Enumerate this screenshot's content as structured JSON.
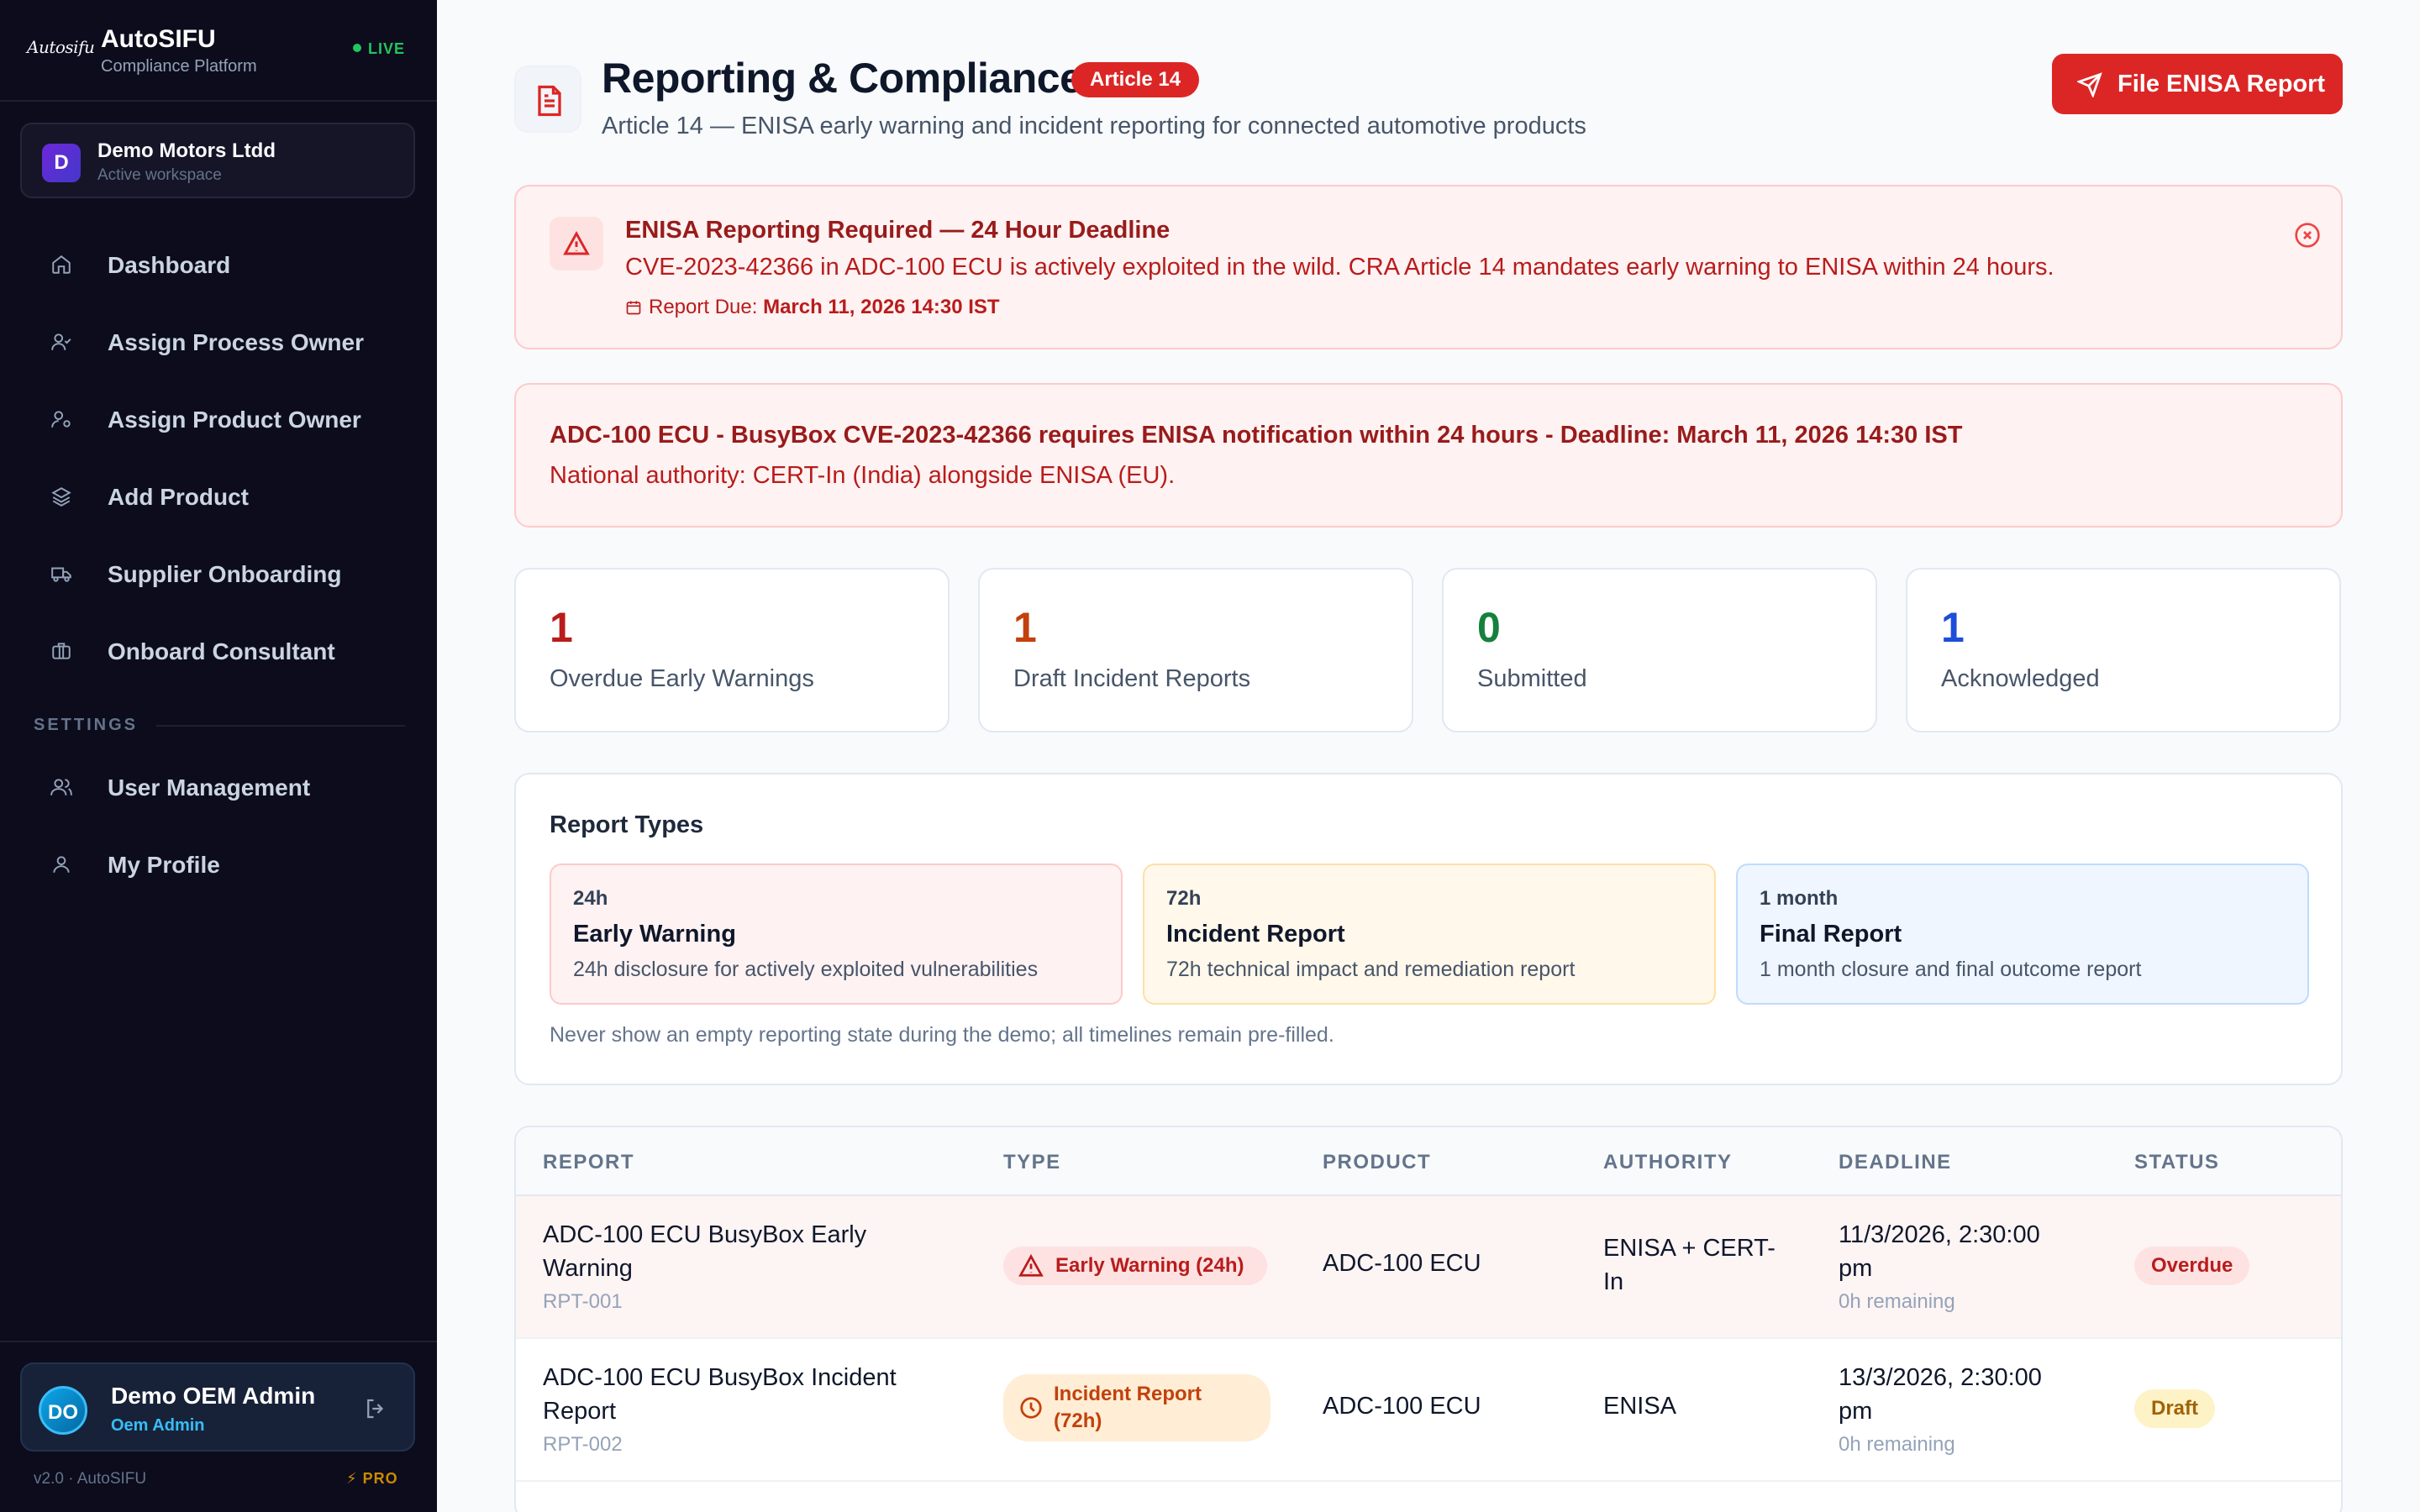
{
  "sidebar": {
    "brand": {
      "logo": "Autosifu",
      "name": "AutoSIFU",
      "subtitle": "Compliance Platform",
      "live": "LIVE"
    },
    "workspace": {
      "initial": "D",
      "name": "Demo Motors Ltdd",
      "subtitle": "Active workspace"
    },
    "nav": [
      {
        "label": "Dashboard",
        "icon": "home-icon"
      },
      {
        "label": "Assign Process Owner",
        "icon": "user-check-icon"
      },
      {
        "label": "Assign Product Owner",
        "icon": "user-cog-icon"
      },
      {
        "label": "Add Product",
        "icon": "layers-icon"
      },
      {
        "label": "Supplier Onboarding",
        "icon": "truck-icon"
      },
      {
        "label": "Onboard Consultant",
        "icon": "briefcase-icon"
      }
    ],
    "settings_label": "SETTINGS",
    "settings_nav": [
      {
        "label": "User Management",
        "icon": "users-icon"
      },
      {
        "label": "My Profile",
        "icon": "user-icon"
      }
    ],
    "user": {
      "initials": "DO",
      "name": "Demo OEM Admin",
      "role": "Oem Admin"
    },
    "version": "v2.0 · AutoSIFU",
    "pro": "PRO"
  },
  "header": {
    "title": "Reporting & Compliance",
    "badge": "Article 14",
    "subtitle": "Article 14 — ENISA early warning and incident reporting for connected automotive products",
    "file_button": "File ENISA Report"
  },
  "alert": {
    "title": "ENISA Reporting Required — 24 Hour Deadline",
    "body": "CVE-2023-42366 in ADC-100 ECU is actively exploited in the wild. CRA Article 14 mandates early warning to ENISA within 24 hours.",
    "due_label": "Report Due:",
    "due_value": "March 11, 2026 14:30 IST"
  },
  "notice": {
    "title": "ADC-100 ECU - BusyBox CVE-2023-42366 requires ENISA notification within 24 hours - Deadline: March 11, 2026 14:30 IST",
    "body": "National authority: CERT-In (India) alongside ENISA (EU)."
  },
  "stats": [
    {
      "value": "1",
      "label": "Overdue Early Warnings",
      "color": "#b91c1c"
    },
    {
      "value": "1",
      "label": "Draft Incident Reports",
      "color": "#c2410c"
    },
    {
      "value": "0",
      "label": "Submitted",
      "color": "#15803d"
    },
    {
      "value": "1",
      "label": "Acknowledged",
      "color": "#1d4ed8"
    }
  ],
  "report_types": {
    "title": "Report Types",
    "cards": [
      {
        "window": "24h",
        "name": "Early Warning",
        "desc": "24h disclosure for actively exploited vulnerabilities"
      },
      {
        "window": "72h",
        "name": "Incident Report",
        "desc": "72h technical impact and remediation report"
      },
      {
        "window": "1 month",
        "name": "Final Report",
        "desc": "1 month closure and final outcome report"
      }
    ],
    "note": "Never show an empty reporting state during the demo; all timelines remain pre-filled."
  },
  "table": {
    "headers": [
      "REPORT",
      "TYPE",
      "PRODUCT",
      "AUTHORITY",
      "DEADLINE",
      "STATUS"
    ],
    "rows": [
      {
        "report_line1": "ADC-100 ECU BusyBox Early",
        "report_line2": "Warning",
        "id": "RPT-001",
        "type": "Early Warning (24h)",
        "type_icon": "alert-triangle-icon",
        "product": "ADC-100 ECU",
        "authority_line1": "ENISA + CERT-",
        "authority_line2": "In",
        "deadline_line1": "11/3/2026, 2:30:00",
        "deadline_line2": "pm",
        "remaining": "0h remaining",
        "status": "Overdue"
      },
      {
        "report_line1": "ADC-100 ECU BusyBox Incident",
        "report_line2": "Report",
        "id": "RPT-002",
        "type_line1": "Incident Report",
        "type_line2": "(72h)",
        "type_icon": "clock-icon",
        "product": "ADC-100 ECU",
        "authority": "ENISA",
        "deadline_line1": "13/3/2026, 2:30:00",
        "deadline_line2": "pm",
        "remaining": "0h remaining",
        "status": "Draft"
      }
    ]
  }
}
